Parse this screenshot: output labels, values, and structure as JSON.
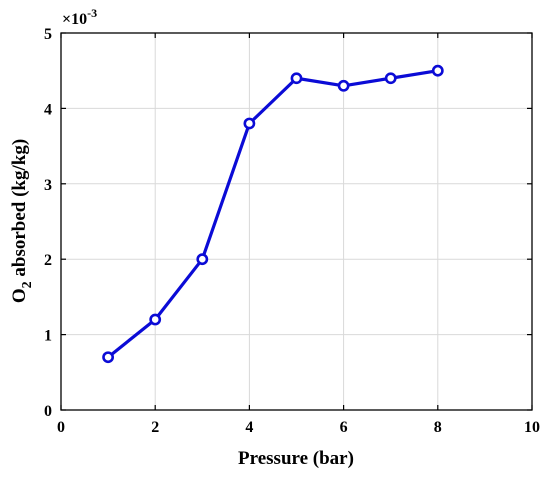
{
  "colors": {
    "series": "#0b0bd6",
    "grid": "#d9d9d9",
    "axis": "#000000",
    "background": "#ffffff"
  },
  "chart_data": {
    "type": "line",
    "xlabel": "Pressure (bar)",
    "ylabel_main": "O",
    "ylabel_sub": "2",
    "ylabel_rest": " absorbed (kg/kg)",
    "y_multiplier_base": "×10",
    "y_multiplier_exp": "-3",
    "xlim": [
      0,
      10
    ],
    "ylim": [
      0,
      5
    ],
    "xticks": [
      0,
      2,
      4,
      6,
      8,
      10
    ],
    "yticks": [
      0,
      1,
      2,
      3,
      4,
      5
    ],
    "grid": true,
    "series": [
      {
        "marker": "circle",
        "x": [
          1,
          2,
          3,
          4,
          5,
          6,
          7,
          8
        ],
        "y": [
          0.7,
          1.2,
          2.0,
          3.8,
          4.4,
          4.3,
          4.4,
          4.5
        ]
      }
    ]
  }
}
